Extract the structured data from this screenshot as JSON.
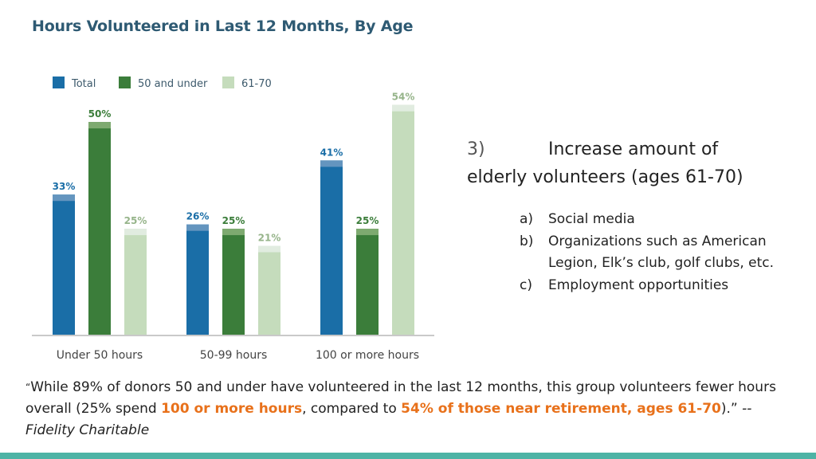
{
  "colors": {
    "total": "#1a6ea7",
    "total_cap": "#6495bf",
    "under50": "#3b7d3a",
    "under50_cap": "#7eaa70",
    "age6170": "#c5dcbc",
    "age6170_cap": "#e1ece0",
    "title": "#2e5a73",
    "highlight": "#e8711b",
    "footer": "#4db3a5"
  },
  "chart_data": {
    "type": "bar",
    "title": "Hours Volunteered in Last 12 Months, By Age",
    "categories": [
      "Under 50 hours",
      "50-99 hours",
      "100 or more hours"
    ],
    "series": [
      {
        "name": "Total",
        "values": [
          33,
          26,
          41
        ],
        "labels": [
          "33%",
          "26%",
          "41%"
        ]
      },
      {
        "name": "50 and under",
        "values": [
          50,
          25,
          25
        ],
        "labels": [
          "50%",
          "25%",
          "25%"
        ]
      },
      {
        "name": "61-70",
        "values": [
          25,
          21,
          54
        ],
        "labels": [
          "25%",
          "21%",
          "54%"
        ]
      }
    ],
    "ylim": [
      0,
      56
    ],
    "grid": false,
    "legend": "top-left"
  },
  "heading": {
    "number": "3)",
    "line1": "Increase amount of",
    "line2": "elderly volunteers (ages 61-70)"
  },
  "sublist": [
    {
      "marker": "a)",
      "text": "Social media"
    },
    {
      "marker": "b)",
      "text": "Organizations such as American Legion, Elk’s club, golf clubs, etc."
    },
    {
      "marker": "c)",
      "text": "Employment opportunities"
    }
  ],
  "quote": {
    "open": "“",
    "part1": "While 89% of donors 50 and under have volunteered in the last 12 months, this group volunteers fewer hours overall (25% spend ",
    "hl1": "100 or more hours",
    "part2": ", compared to ",
    "hl2": "54% of those near retirement, ages 61-70",
    "part3": ").”  ",
    "source": "-- Fidelity Charitable"
  }
}
